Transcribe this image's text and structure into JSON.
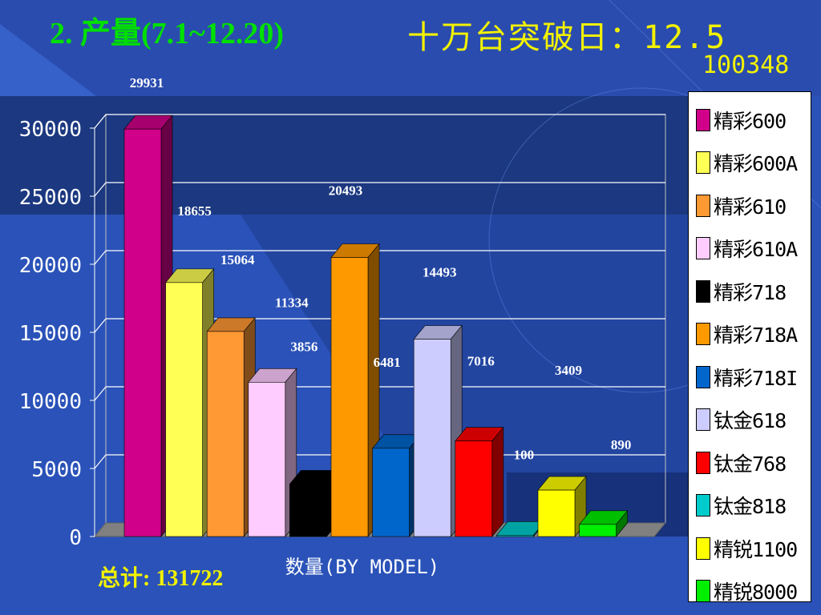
{
  "header": {
    "title_left": "2. 产量(7.1~12.20)",
    "title_right": "十万台突破日：12.5",
    "count": "100348"
  },
  "footer": {
    "total": "总计: 131722"
  },
  "colors": {
    "background": "#2a52b8",
    "title_left": "#00e000",
    "title_right": "#f2f200"
  },
  "chart_data": {
    "type": "bar",
    "style": "3d-column",
    "xlabel": "数量(BY MODEL)",
    "ylabel": "",
    "ylim": [
      0,
      30000
    ],
    "yticks": [
      0,
      5000,
      10000,
      15000,
      20000,
      25000,
      30000
    ],
    "grid": true,
    "legend_position": "right",
    "categories": [
      "精彩600",
      "精彩600A",
      "精彩610",
      "精彩610A",
      "精彩718",
      "精彩718A",
      "精彩718I",
      "钛金618",
      "钛金768",
      "钛金818",
      "精锐1100",
      "精锐8000"
    ],
    "values": [
      29931,
      18655,
      15064,
      11334,
      3856,
      20493,
      6481,
      14493,
      7016,
      100,
      3409,
      890
    ],
    "colors": [
      "#d0008a",
      "#ffff55",
      "#ff9933",
      "#ffccff",
      "#000000",
      "#ff9900",
      "#0066cc",
      "#ccccff",
      "#ff0000",
      "#00cccc",
      "#ffff00",
      "#00ee00"
    ]
  }
}
